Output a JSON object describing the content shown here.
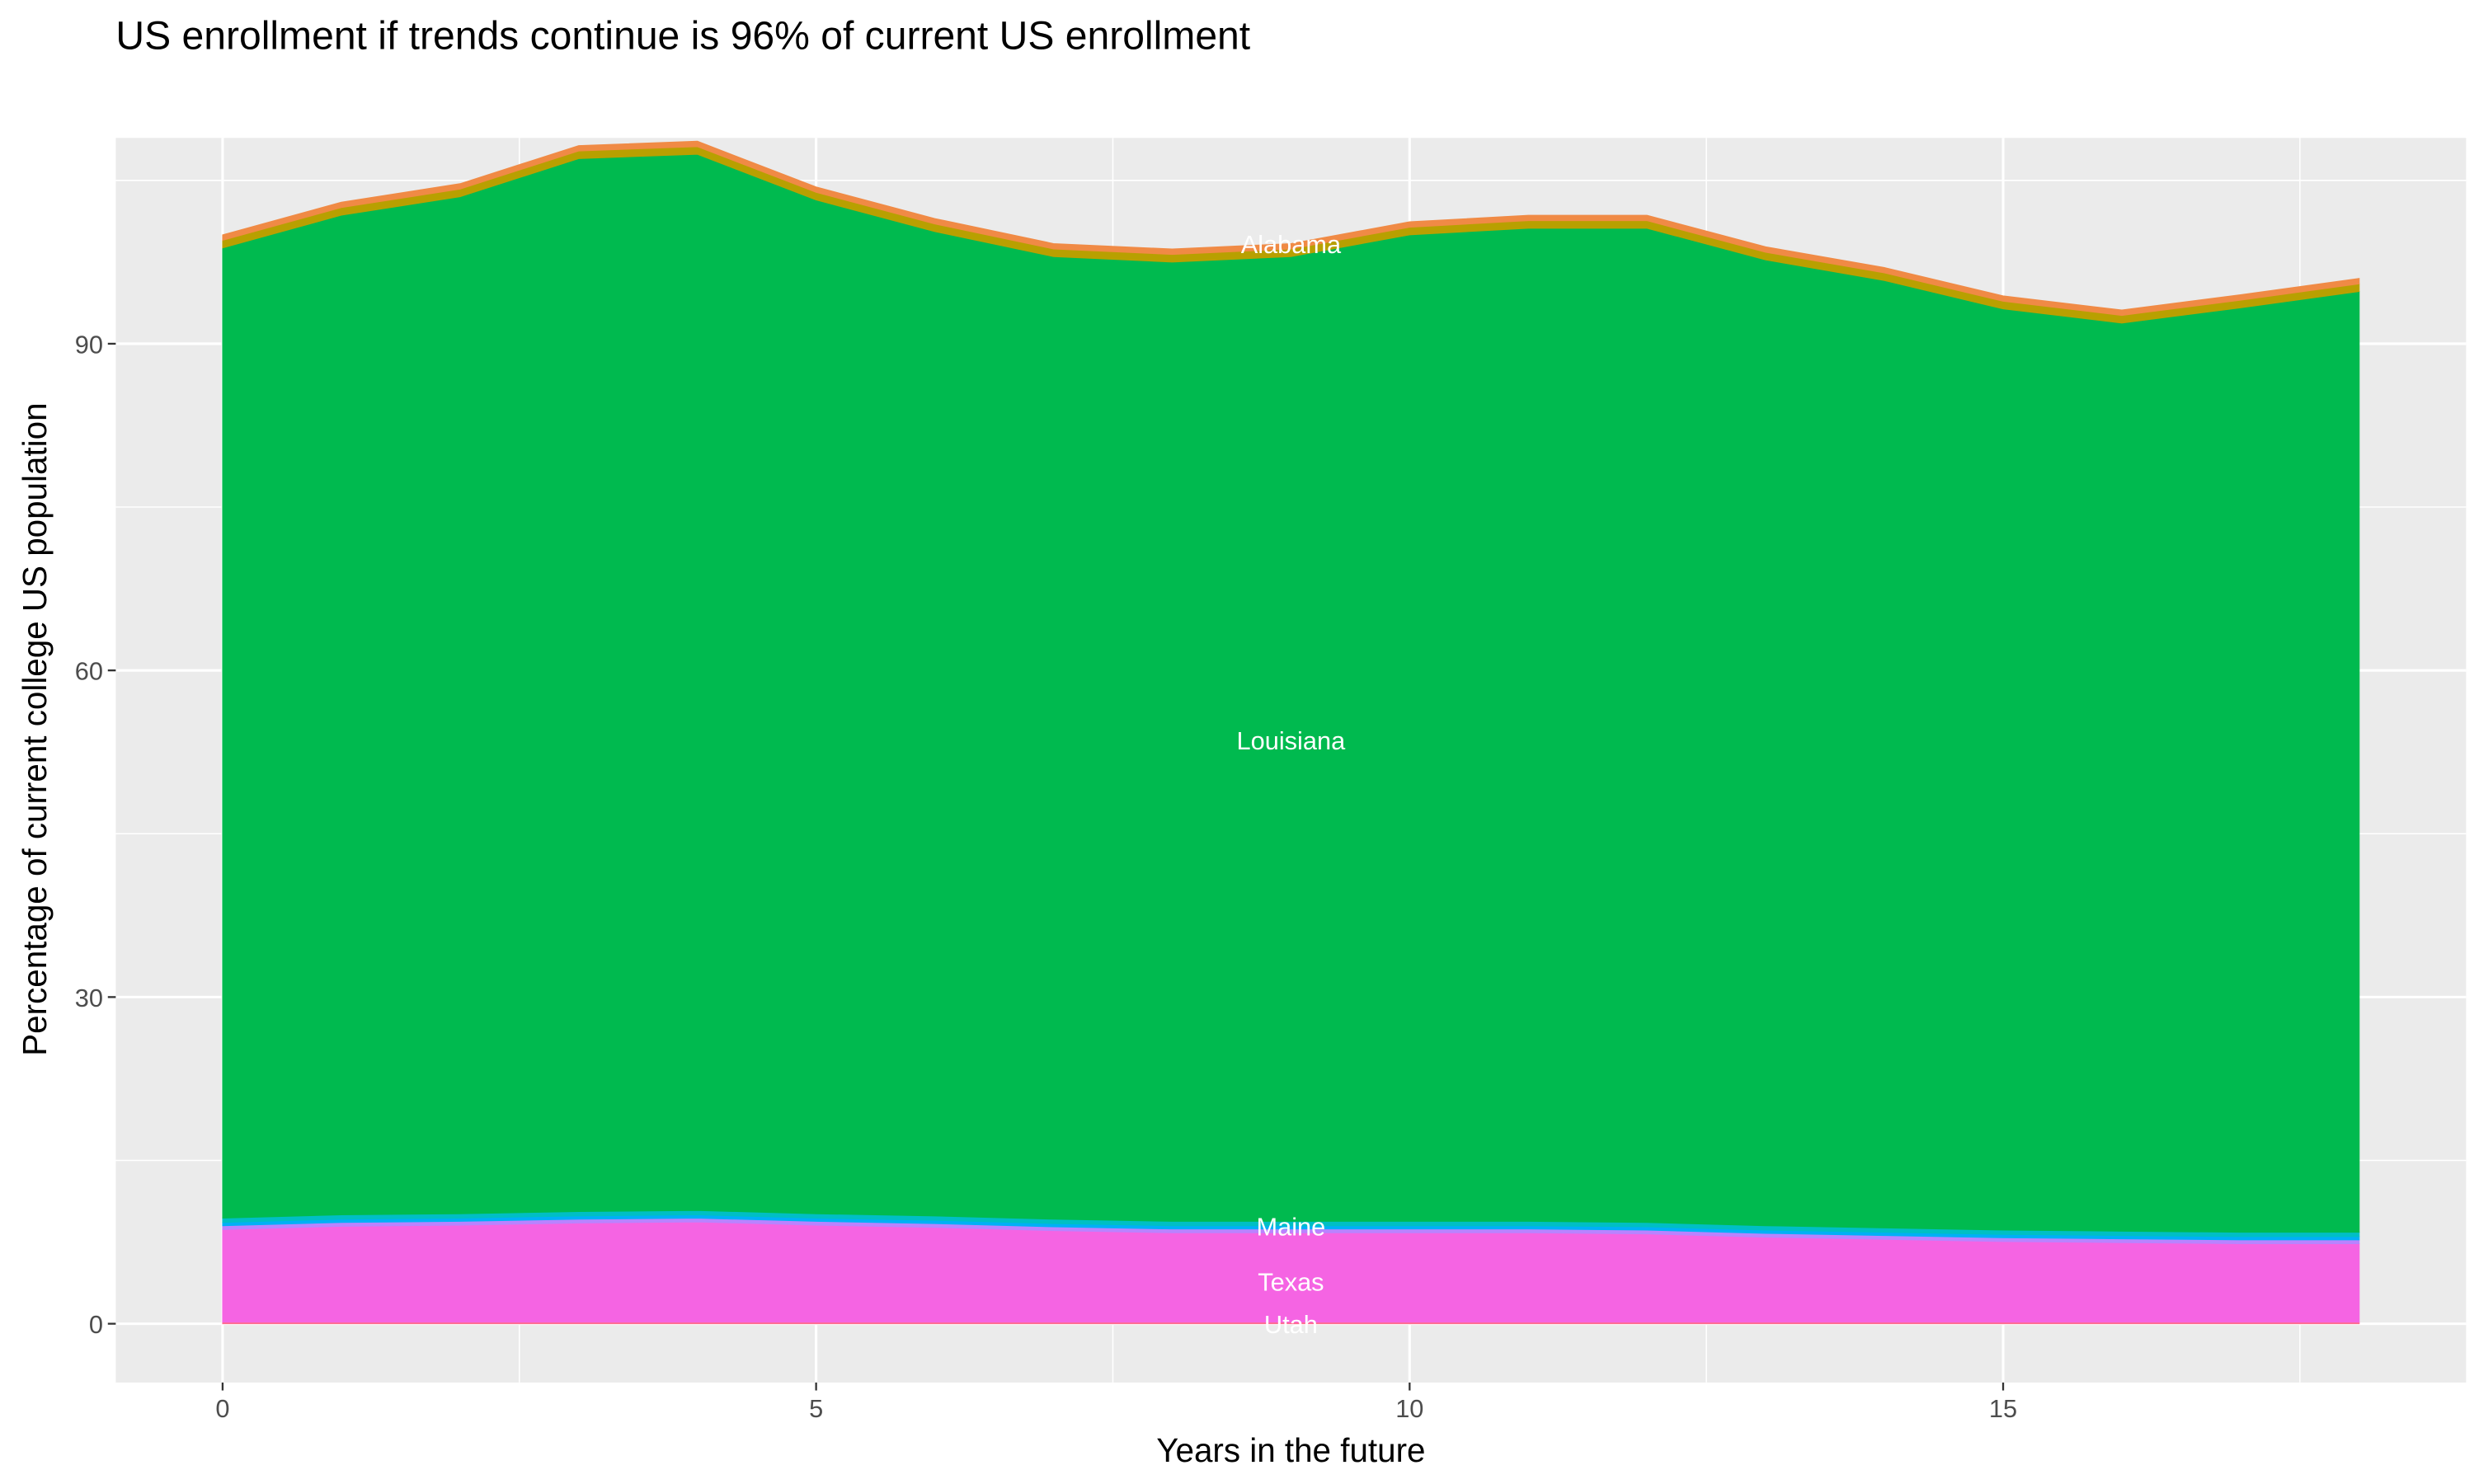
{
  "chart_data": {
    "type": "area",
    "stacked": true,
    "title": "US enrollment if trends continue is 96% of current US enrollment",
    "xlabel": "Years in the future",
    "ylabel": "Percentage of current college US population",
    "x": [
      0,
      1,
      2,
      3,
      4,
      5,
      6,
      7,
      8,
      9,
      10,
      11,
      12,
      13,
      14,
      15,
      16,
      17,
      18
    ],
    "xlim": [
      -0.9,
      18.9
    ],
    "ylim": [
      -5.4,
      108.9
    ],
    "xticks": [
      0,
      5,
      10,
      15
    ],
    "yticks": [
      0,
      30,
      60,
      90
    ],
    "grid": true,
    "legend": "none",
    "series": [
      {
        "name": "Utah",
        "color": "#FF6C91",
        "values": [
          0.15,
          0.15,
          0.15,
          0.15,
          0.15,
          0.15,
          0.15,
          0.15,
          0.15,
          0.15,
          0.15,
          0.15,
          0.15,
          0.15,
          0.15,
          0.15,
          0.15,
          0.15,
          0.15
        ]
      },
      {
        "name": "Texas",
        "color": "#F564E3",
        "values": [
          8.5,
          8.8,
          8.9,
          9.1,
          9.2,
          8.9,
          8.7,
          8.4,
          8.2,
          8.2,
          8.2,
          8.2,
          8.1,
          7.8,
          7.6,
          7.4,
          7.3,
          7.2,
          7.2
        ]
      },
      {
        "color": "#B983FF",
        "values": [
          0.35,
          0.35,
          0.35,
          0.35,
          0.35,
          0.35,
          0.35,
          0.35,
          0.35,
          0.35,
          0.35,
          0.35,
          0.35,
          0.35,
          0.35,
          0.35,
          0.35,
          0.35,
          0.35
        ]
      },
      {
        "color": "#00B0F6",
        "values": [
          0.3,
          0.3,
          0.3,
          0.3,
          0.3,
          0.3,
          0.3,
          0.3,
          0.3,
          0.3,
          0.3,
          0.3,
          0.3,
          0.3,
          0.3,
          0.3,
          0.3,
          0.3,
          0.3
        ]
      },
      {
        "name": "Maine",
        "color": "#00BFC4",
        "values": [
          0.4,
          0.4,
          0.4,
          0.4,
          0.4,
          0.4,
          0.4,
          0.4,
          0.4,
          0.4,
          0.4,
          0.4,
          0.4,
          0.4,
          0.4,
          0.4,
          0.4,
          0.4,
          0.4
        ]
      },
      {
        "name": "Louisiana",
        "color": "#00BA4F",
        "values": [
          89.1,
          91.8,
          93.4,
          96.7,
          97.0,
          93.1,
          90.4,
          88.4,
          88.1,
          88.6,
          90.6,
          91.2,
          91.3,
          88.7,
          87.0,
          84.6,
          83.4,
          84.9,
          86.4
        ]
      },
      {
        "color": "#B8A000",
        "values": [
          0.7,
          0.7,
          0.7,
          0.7,
          0.7,
          0.7,
          0.7,
          0.7,
          0.7,
          0.7,
          0.7,
          0.7,
          0.7,
          0.7,
          0.7,
          0.7,
          0.7,
          0.7,
          0.7
        ]
      },
      {
        "name": "Alabama",
        "color": "#F08A45",
        "values": [
          0.5,
          0.5,
          0.5,
          0.5,
          0.5,
          0.5,
          0.5,
          0.5,
          0.5,
          0.5,
          0.5,
          0.5,
          0.5,
          0.5,
          0.5,
          0.5,
          0.5,
          0.5,
          0.5
        ]
      }
    ],
    "annotations": [
      {
        "text": "Alabama",
        "x": 9,
        "y": 99.2
      },
      {
        "text": "Louisiana",
        "x": 9,
        "y": 53.6
      },
      {
        "text": "Maine",
        "x": 9,
        "y": 9.0
      },
      {
        "text": "Texas",
        "x": 9,
        "y": 3.9
      },
      {
        "text": "Utah",
        "x": 9,
        "y": 0
      }
    ],
    "panel_background": "#EBEBEB",
    "gridline_color": "#FFFFFF"
  }
}
